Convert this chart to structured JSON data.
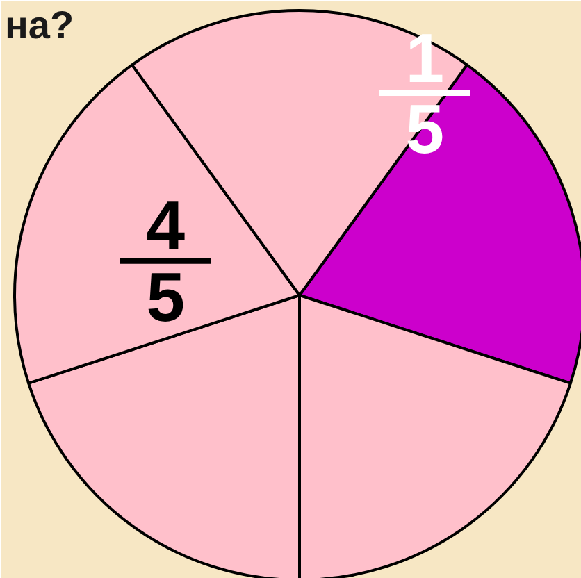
{
  "chart_data": {
    "type": "pie",
    "title": "на?",
    "categories": [
      null,
      null,
      null,
      null,
      null
    ],
    "values": [
      20,
      20,
      20,
      20,
      20
    ],
    "colors": [
      "#cc00cc",
      "#ffc0cb",
      "#ffc0cb",
      "#ffc0cb",
      "#ffc0cb"
    ],
    "annotations": [
      "1",
      "5",
      "4",
      "5"
    ],
    "legend": false
  }
}
